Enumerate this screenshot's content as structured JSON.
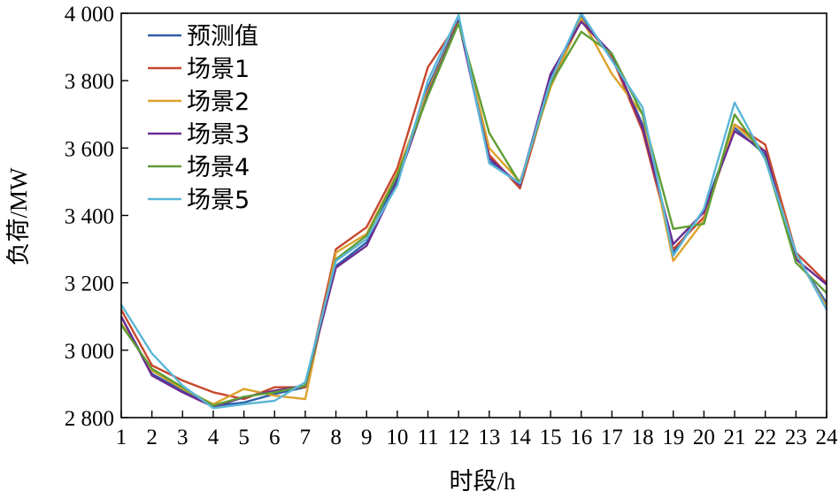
{
  "chart_data": {
    "type": "line",
    "xlabel": "时段/h",
    "ylabel": "负荷/MW",
    "x": [
      1,
      2,
      3,
      4,
      5,
      6,
      7,
      8,
      9,
      10,
      11,
      12,
      13,
      14,
      15,
      16,
      17,
      18,
      19,
      20,
      21,
      22,
      23,
      24
    ],
    "xlim": [
      1,
      24
    ],
    "ylim": [
      2800,
      4000
    ],
    "yticks": [
      2800,
      3000,
      3200,
      3400,
      3600,
      3800,
      4000
    ],
    "ytick_labels": [
      "2 800",
      "3 000",
      "3 200",
      "3 400",
      "3 600",
      "3 800",
      "4 000"
    ],
    "legend_position": "top-left",
    "grid": false,
    "series": [
      {
        "name": "预测值",
        "color": "#2e5fa8",
        "values": [
          3100,
          2930,
          2880,
          2835,
          2845,
          2870,
          2890,
          3250,
          3320,
          3510,
          3780,
          3980,
          3560,
          3495,
          3810,
          3990,
          3870,
          3670,
          3290,
          3415,
          3660,
          3580,
          3280,
          3140
        ]
      },
      {
        "name": "场景1",
        "color": "#c8472e",
        "values": [
          3120,
          2955,
          2910,
          2875,
          2855,
          2890,
          2890,
          3300,
          3365,
          3540,
          3840,
          3975,
          3580,
          3480,
          3790,
          3980,
          3870,
          3650,
          3300,
          3395,
          3670,
          3610,
          3290,
          3200
        ]
      },
      {
        "name": "场景2",
        "color": "#dba22c",
        "values": [
          3080,
          2940,
          2885,
          2840,
          2885,
          2865,
          2855,
          3290,
          3345,
          3525,
          3770,
          3975,
          3600,
          3500,
          3780,
          3985,
          3820,
          3700,
          3265,
          3385,
          3670,
          3590,
          3280,
          3130
        ]
      },
      {
        "name": "场景3",
        "color": "#6a2c91",
        "values": [
          3100,
          2925,
          2875,
          2832,
          2860,
          2880,
          2895,
          3245,
          3310,
          3500,
          3760,
          3975,
          3570,
          3490,
          3820,
          3975,
          3880,
          3660,
          3315,
          3410,
          3650,
          3590,
          3270,
          3195
        ]
      },
      {
        "name": "场景4",
        "color": "#5f9e35",
        "values": [
          3075,
          2945,
          2890,
          2836,
          2862,
          2875,
          2895,
          3270,
          3340,
          3520,
          3755,
          3970,
          3645,
          3495,
          3790,
          3945,
          3880,
          3700,
          3360,
          3375,
          3700,
          3570,
          3260,
          3170
        ]
      },
      {
        "name": "场景5",
        "color": "#5bb6d6",
        "values": [
          3135,
          2990,
          2895,
          2828,
          2840,
          2850,
          2905,
          3265,
          3330,
          3490,
          3800,
          3995,
          3555,
          3495,
          3800,
          4000,
          3860,
          3720,
          3280,
          3420,
          3735,
          3565,
          3290,
          3120
        ]
      }
    ]
  }
}
